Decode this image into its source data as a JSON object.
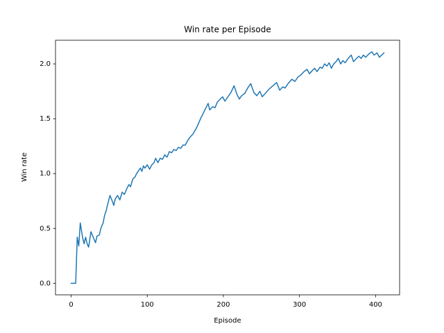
{
  "chart_data": {
    "type": "line",
    "title": "Win rate per Episode",
    "x_label": "Episode",
    "y_label": "Win rate",
    "color": "#1f77b4",
    "x": [
      0,
      5,
      6,
      8,
      10,
      12,
      15,
      17,
      19,
      21,
      23,
      26,
      29,
      32,
      34,
      37,
      39,
      42,
      44,
      46,
      48,
      51,
      54,
      56,
      58,
      61,
      64,
      67,
      70,
      73,
      76,
      78,
      81,
      84,
      86,
      89,
      91,
      93,
      95,
      97,
      100,
      103,
      106,
      109,
      111,
      114,
      117,
      120,
      123,
      126,
      129,
      132,
      135,
      138,
      141,
      144,
      147,
      150,
      153,
      156,
      160,
      165,
      170,
      175,
      180,
      182,
      186,
      189,
      192,
      196,
      199,
      202,
      206,
      210,
      214,
      218,
      221,
      224,
      228,
      232,
      236,
      240,
      244,
      248,
      251,
      255,
      260,
      265,
      270,
      274,
      278,
      281,
      285,
      290,
      294,
      298,
      302,
      306,
      310,
      313,
      317,
      320,
      323,
      327,
      330,
      333,
      336,
      339,
      342,
      345,
      348,
      351,
      354,
      357,
      360,
      364,
      368,
      371,
      375,
      378,
      381,
      384,
      387,
      391,
      395,
      398,
      402,
      405,
      408,
      411
    ],
    "values": [
      0,
      0,
      0,
      0.42,
      0.34,
      0.55,
      0.42,
      0.36,
      0.42,
      0.36,
      0.33,
      0.47,
      0.42,
      0.37,
      0.43,
      0.44,
      0.5,
      0.55,
      0.62,
      0.66,
      0.72,
      0.8,
      0.75,
      0.71,
      0.77,
      0.8,
      0.76,
      0.83,
      0.81,
      0.86,
      0.9,
      0.88,
      0.95,
      0.97,
      1.0,
      1.03,
      1.05,
      1.02,
      1.07,
      1.05,
      1.08,
      1.04,
      1.08,
      1.1,
      1.14,
      1.1,
      1.14,
      1.13,
      1.17,
      1.15,
      1.2,
      1.19,
      1.22,
      1.21,
      1.24,
      1.23,
      1.26,
      1.26,
      1.3,
      1.33,
      1.36,
      1.42,
      1.5,
      1.57,
      1.64,
      1.58,
      1.61,
      1.6,
      1.65,
      1.68,
      1.7,
      1.66,
      1.7,
      1.74,
      1.8,
      1.72,
      1.68,
      1.71,
      1.73,
      1.78,
      1.82,
      1.74,
      1.71,
      1.75,
      1.7,
      1.73,
      1.77,
      1.8,
      1.83,
      1.76,
      1.79,
      1.78,
      1.82,
      1.86,
      1.84,
      1.88,
      1.9,
      1.93,
      1.95,
      1.91,
      1.94,
      1.96,
      1.93,
      1.97,
      1.96,
      2.0,
      1.98,
      2.01,
      1.96,
      2.0,
      2.02,
      2.05,
      2.0,
      2.03,
      2.01,
      2.05,
      2.08,
      2.02,
      2.05,
      2.07,
      2.05,
      2.08,
      2.06,
      2.09,
      2.11,
      2.08,
      2.1,
      2.06,
      2.08,
      2.1
    ],
    "xlim": [
      -20.55,
      431.55
    ],
    "ylim": [
      -0.1055,
      2.2155
    ],
    "xticks": [
      0,
      100,
      200,
      300,
      400
    ],
    "yticks": [
      {
        "value": 0,
        "label": "0.0"
      },
      0.5,
      {
        "value": 1,
        "label": "1.0"
      },
      1.5,
      {
        "value": 2,
        "label": "2.0"
      }
    ]
  }
}
